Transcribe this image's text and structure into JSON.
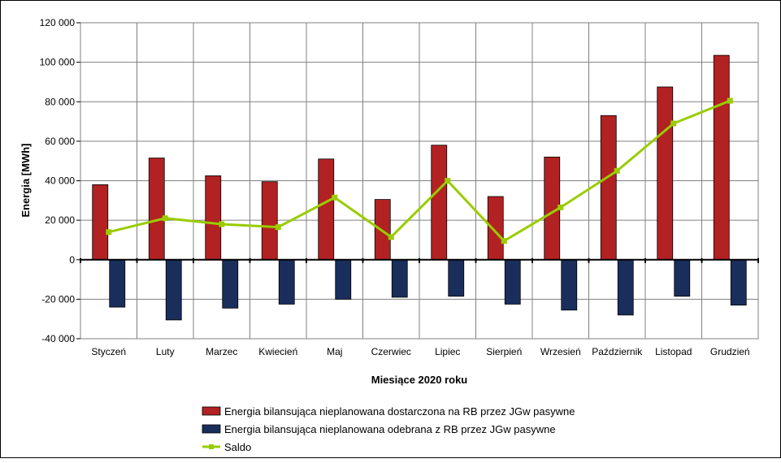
{
  "chart_data": {
    "type": "bar",
    "title": "",
    "xlabel": "Miesiące 2020  roku",
    "ylabel": "Energia [MWh]",
    "ylim": [
      -40000,
      120000
    ],
    "yticks": [
      -40000,
      -20000,
      0,
      20000,
      40000,
      60000,
      80000,
      100000,
      120000
    ],
    "ytick_labels": [
      "-40 000",
      "-20 000",
      "0",
      "20 000",
      "40 000",
      "60 000",
      "80 000",
      "100 000",
      "120 000"
    ],
    "grid": true,
    "legend_position": "bottom",
    "categories": [
      "Styczeń",
      "Luty",
      "Marzec",
      "Kwiecień",
      "Maj",
      "Czerwiec",
      "Lipiec",
      "Sierpień",
      "Wrzesień",
      "Październik",
      "Listopad",
      "Grudzień"
    ],
    "series": [
      {
        "name": "Energia bilansująca nieplanowana dostarczona na RB przez JGw pasywne",
        "type": "bar",
        "color": "#b22222",
        "values": [
          38000,
          51500,
          42500,
          39500,
          51000,
          30500,
          58000,
          32000,
          52000,
          73000,
          87500,
          103500
        ]
      },
      {
        "name": "Energia bilansująca nieplanowana odebrana z RB przez JGw pasywne",
        "type": "bar",
        "color": "#1a2e5c",
        "values": [
          -24000,
          -30500,
          -24500,
          -22500,
          -20000,
          -19000,
          -18500,
          -22500,
          -25500,
          -28000,
          -18500,
          -23000
        ]
      },
      {
        "name": "Saldo",
        "type": "line",
        "color": "#99cc00",
        "values": [
          14000,
          21000,
          18000,
          16500,
          31500,
          11500,
          40000,
          9500,
          26500,
          45000,
          69000,
          80500
        ]
      }
    ]
  }
}
